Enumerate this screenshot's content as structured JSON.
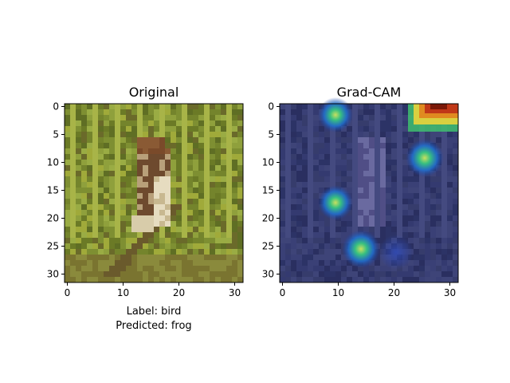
{
  "panels": [
    {
      "title": "Original",
      "xticks": [
        "0",
        "10",
        "20",
        "30"
      ],
      "yticks": [
        "0",
        "5",
        "10",
        "15",
        "20",
        "25",
        "30"
      ],
      "xlabel_lines": [
        "Label: bird",
        "Predicted: frog"
      ],
      "image_description": "pixelated 32x32 photo of a small brown-and-white bird perched on a branch over a green grassy background"
    },
    {
      "title": "Grad-CAM",
      "xticks": [
        "0",
        "10",
        "20",
        "30"
      ],
      "yticks": [
        "0",
        "5",
        "10",
        "15",
        "20",
        "25",
        "30"
      ],
      "image_description": "Grad-CAM heatmap overlay on the same image, dark blue base with green hotspots and a red hotspot at the top-right corner"
    }
  ],
  "colors": {
    "grass_dark": "#5c6a22",
    "grass_light": "#9aaa3a",
    "bird_brown": "#7a4a2a",
    "bird_white": "#e8dcc0",
    "cam_base": "#2e3568",
    "cam_hot_green": "#3fc070",
    "cam_hot_red": "#b83010"
  }
}
